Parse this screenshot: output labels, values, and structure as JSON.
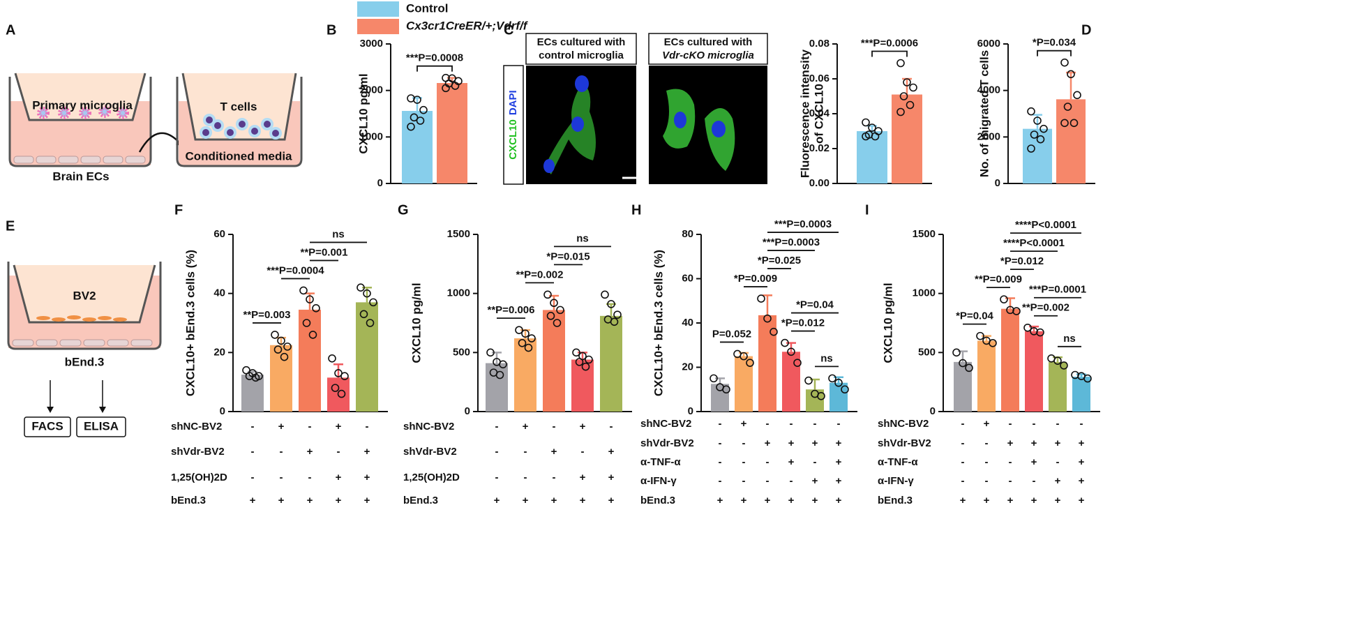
{
  "panel_labels": [
    "A",
    "B",
    "C",
    "D",
    "E",
    "F",
    "G",
    "H",
    "I"
  ],
  "legend": {
    "entries": [
      {
        "label": "Control",
        "color": "#87ceeb"
      },
      {
        "label": "Cx3cr1CreER/+;Vdrf/f",
        "color": "#f6876a"
      }
    ]
  },
  "diagram_a": {
    "labels": [
      "Primary microglia",
      "Brain ECs",
      "T cells",
      "Conditioned media"
    ]
  },
  "image_c": {
    "titles": [
      [
        "ECs cultured with",
        "control microglia"
      ],
      [
        "ECs cultured with",
        "Vdr-cKO microglia"
      ]
    ],
    "channels": [
      {
        "label": "CXCL10",
        "color": "#22c022"
      },
      {
        "label": "DAPI",
        "color": "#1f3fe0"
      }
    ]
  },
  "diagram_e": {
    "labels": [
      "BV2",
      "bEnd.3",
      "FACS",
      "ELISA"
    ]
  },
  "chart_data": [
    {
      "type": "bar",
      "ylabel": [
        "CXCL10 pg/ml"
      ],
      "ylim": [
        0,
        3000
      ],
      "yticks": [
        0,
        1000,
        2000,
        3000
      ],
      "colors": [
        "#87ceeb",
        "#f6876a"
      ],
      "values": [
        1560,
        2160
      ],
      "errors": [
        280,
        110
      ],
      "points": [
        [
          1830,
          1800,
          1580,
          1420,
          1350,
          1220
        ],
        [
          2270,
          2260,
          2200,
          2150,
          2100,
          2050
        ]
      ],
      "brackets": [
        {
          "from": 0,
          "to": 1,
          "label": "***P=0.0008"
        }
      ]
    },
    {
      "type": "bar",
      "ylabel": [
        "Fluorescence intensity",
        "of CXCL10"
      ],
      "ylim": [
        0,
        0.08
      ],
      "yticks": [
        {
          "value": 0,
          "label": "0.00"
        },
        0.02,
        0.04,
        0.06,
        0.08
      ],
      "colors": [
        "#87ceeb",
        "#f6876a"
      ],
      "values": [
        0.03,
        0.051
      ],
      "errors": [
        0.003,
        0.009
      ],
      "points": [
        [
          0.035,
          0.032,
          0.03,
          0.028,
          0.027,
          0.027
        ],
        [
          0.069,
          0.058,
          0.055,
          0.05,
          0.045,
          0.041
        ]
      ],
      "brackets": [
        {
          "from": 0,
          "to": 1,
          "label": "***P=0.0006"
        }
      ]
    },
    {
      "type": "bar",
      "ylabel": [
        "No. of migrated T cells"
      ],
      "ylim": [
        0,
        6000
      ],
      "yticks": [
        0,
        2000,
        4000,
        6000
      ],
      "colors": [
        "#87ceeb",
        "#f6876a"
      ],
      "values": [
        2350,
        3620
      ],
      "errors": [
        600,
        1150
      ],
      "points": [
        [
          3100,
          2700,
          2350,
          2100,
          1900,
          1500
        ],
        [
          5200,
          4700,
          3800,
          3300,
          2600,
          2600
        ]
      ],
      "brackets": [
        {
          "from": 0,
          "to": 1,
          "label": "*P=0.034"
        }
      ]
    },
    {
      "type": "bar",
      "ylabel": [
        "CXCL10+ bEnd.3 cells (%)"
      ],
      "ylim": [
        0,
        60
      ],
      "yticks": [
        0,
        20,
        40,
        60
      ],
      "colors": [
        "#a3a3a9",
        "#f9aa63",
        "#f47c5a",
        "#f0595e",
        "#a4b557"
      ],
      "values": [
        12.5,
        22.5,
        34.5,
        11.5,
        37
      ],
      "errors": [
        1,
        2.5,
        5.5,
        4.5,
        5
      ],
      "points": [
        [
          14,
          13,
          12,
          12,
          11.5
        ],
        [
          26,
          24,
          22,
          21,
          18.5
        ],
        [
          41,
          38,
          35,
          30,
          26
        ],
        [
          18,
          13,
          12,
          8,
          6
        ],
        [
          42,
          40,
          37,
          33,
          30
        ]
      ],
      "brackets": [
        {
          "from": 0,
          "to": 1,
          "label": "**P=0.003"
        },
        {
          "from": 1,
          "to": 2,
          "label": "***P=0.0004"
        },
        {
          "from": 2,
          "to": 3,
          "label": "**P=0.001"
        },
        {
          "from": 2,
          "to": 4,
          "label": "ns"
        }
      ],
      "conditions": {
        "rows": [
          {
            "label": "shNC-BV2",
            "marks": [
              "-",
              "+",
              "-",
              "+",
              "-"
            ]
          },
          {
            "label": "shVdr-BV2",
            "marks": [
              "-",
              "-",
              "+",
              "-",
              "+"
            ]
          },
          {
            "label": "1,25(OH)2D",
            "marks": [
              "-",
              "-",
              "-",
              "+",
              "+"
            ]
          },
          {
            "label": "bEnd.3",
            "marks": [
              "+",
              "+",
              "+",
              "+",
              "+"
            ]
          }
        ]
      }
    },
    {
      "type": "bar",
      "ylabel": [
        "CXCL10 pg/ml"
      ],
      "ylim": [
        0,
        1500
      ],
      "yticks": [
        0,
        500,
        1000,
        1500
      ],
      "colors": [
        "#a3a3a9",
        "#f9aa63",
        "#f47c5a",
        "#f0595e",
        "#a4b557"
      ],
      "values": [
        410,
        620,
        860,
        440,
        810
      ],
      "errors": [
        90,
        70,
        120,
        60,
        100
      ],
      "points": [
        [
          500,
          420,
          400,
          330,
          310
        ],
        [
          690,
          660,
          620,
          580,
          540
        ],
        [
          990,
          920,
          860,
          810,
          750
        ],
        [
          500,
          470,
          440,
          420,
          380
        ],
        [
          990,
          910,
          820,
          780,
          760
        ]
      ],
      "brackets": [
        {
          "from": 0,
          "to": 1,
          "label": "**P=0.006"
        },
        {
          "from": 1,
          "to": 2,
          "label": "**P=0.002"
        },
        {
          "from": 2,
          "to": 3,
          "label": "*P=0.015"
        },
        {
          "from": 2,
          "to": 4,
          "label": "ns"
        }
      ],
      "conditions": {
        "rows": [
          {
            "label": "shNC-BV2",
            "marks": [
              "-",
              "+",
              "-",
              "+",
              "-"
            ]
          },
          {
            "label": "shVdr-BV2",
            "marks": [
              "-",
              "-",
              "+",
              "-",
              "+"
            ]
          },
          {
            "label": "1,25(OH)2D",
            "marks": [
              "-",
              "-",
              "-",
              "+",
              "+"
            ]
          },
          {
            "label": "bEnd.3",
            "marks": [
              "+",
              "+",
              "+",
              "+",
              "+"
            ]
          }
        ]
      }
    },
    {
      "type": "bar",
      "ylabel": [
        "CXCL10+ bEnd.3 cells (%)"
      ],
      "ylim": [
        0,
        80
      ],
      "yticks": [
        0,
        20,
        40,
        60,
        80
      ],
      "colors": [
        "#a3a3a9",
        "#f9aa63",
        "#f47c5a",
        "#f0595e",
        "#a4b557",
        "#5db8d8"
      ],
      "values": [
        12.5,
        25,
        43.5,
        27,
        10,
        13
      ],
      "errors": [
        2.5,
        1.5,
        9,
        4,
        4.5,
        2.5
      ],
      "points": [
        [
          15,
          11,
          10
        ],
        [
          26,
          25,
          22
        ],
        [
          51,
          42,
          36
        ],
        [
          31,
          27,
          22
        ],
        [
          14,
          8,
          7
        ],
        [
          15,
          13,
          10
        ]
      ],
      "brackets": [
        {
          "from": 0,
          "to": 1,
          "label": "P=0.052"
        },
        {
          "from": 1,
          "to": 2,
          "label": "*P=0.009"
        },
        {
          "from": 2,
          "to": 3,
          "label": "*P=0.025"
        },
        {
          "from": 2,
          "to": 4,
          "label": "***P=0.0003"
        },
        {
          "from": 2,
          "to": 5,
          "label": "***P=0.0003"
        },
        {
          "from": 3,
          "to": 4,
          "label": "*P=0.012"
        },
        {
          "from": 3,
          "to": 5,
          "label": "*P=0.04"
        },
        {
          "from": 4,
          "to": 5,
          "label": "ns"
        }
      ],
      "conditions": {
        "rows": [
          {
            "label": "shNC-BV2",
            "marks": [
              "-",
              "+",
              "-",
              "-",
              "-",
              "-"
            ]
          },
          {
            "label": "shVdr-BV2",
            "marks": [
              "-",
              "-",
              "+",
              "+",
              "+",
              "+"
            ]
          },
          {
            "label": "α-TNF-α",
            "marks": [
              "-",
              "-",
              "-",
              "+",
              "-",
              "+"
            ]
          },
          {
            "label": "α-IFN-γ",
            "marks": [
              "-",
              "-",
              "-",
              "-",
              "+",
              "+"
            ]
          },
          {
            "label": "bEnd.3",
            "marks": [
              "+",
              "+",
              "+",
              "+",
              "+",
              "+"
            ]
          }
        ]
      }
    },
    {
      "type": "bar",
      "ylabel": [
        "CXCL10 pg/ml"
      ],
      "ylim": [
        0,
        1500
      ],
      "yticks": [
        0,
        500,
        1000,
        1500
      ],
      "colors": [
        "#a3a3a9",
        "#f9aa63",
        "#f47c5a",
        "#f0595e",
        "#a4b557",
        "#5db8d8"
      ],
      "values": [
        420,
        600,
        870,
        680,
        420,
        295
      ],
      "errors": [
        90,
        40,
        90,
        40,
        40,
        20
      ],
      "points": [
        [
          500,
          410,
          370
        ],
        [
          640,
          600,
          580
        ],
        [
          950,
          860,
          850
        ],
        [
          710,
          680,
          670
        ],
        [
          450,
          430,
          390
        ],
        [
          310,
          300,
          280
        ]
      ],
      "brackets": [
        {
          "from": 0,
          "to": 1,
          "label": "*P=0.04"
        },
        {
          "from": 1,
          "to": 2,
          "label": "**P=0.009"
        },
        {
          "from": 2,
          "to": 3,
          "label": "*P=0.012"
        },
        {
          "from": 2,
          "to": 4,
          "label": "****P<0.0001"
        },
        {
          "from": 2,
          "to": 5,
          "label": "****P<0.0001"
        },
        {
          "from": 3,
          "to": 4,
          "label": "**P=0.002"
        },
        {
          "from": 3,
          "to": 5,
          "label": "***P=0.0001"
        },
        {
          "from": 4,
          "to": 5,
          "label": "ns"
        }
      ],
      "conditions": {
        "rows": [
          {
            "label": "shNC-BV2",
            "marks": [
              "-",
              "+",
              "-",
              "-",
              "-",
              "-"
            ]
          },
          {
            "label": "shVdr-BV2",
            "marks": [
              "-",
              "-",
              "+",
              "+",
              "+",
              "+"
            ]
          },
          {
            "label": "α-TNF-α",
            "marks": [
              "-",
              "-",
              "-",
              "+",
              "-",
              "+"
            ]
          },
          {
            "label": "α-IFN-γ",
            "marks": [
              "-",
              "-",
              "-",
              "-",
              "+",
              "+"
            ]
          },
          {
            "label": "bEnd.3",
            "marks": [
              "+",
              "+",
              "+",
              "+",
              "+",
              "+"
            ]
          }
        ]
      }
    }
  ]
}
